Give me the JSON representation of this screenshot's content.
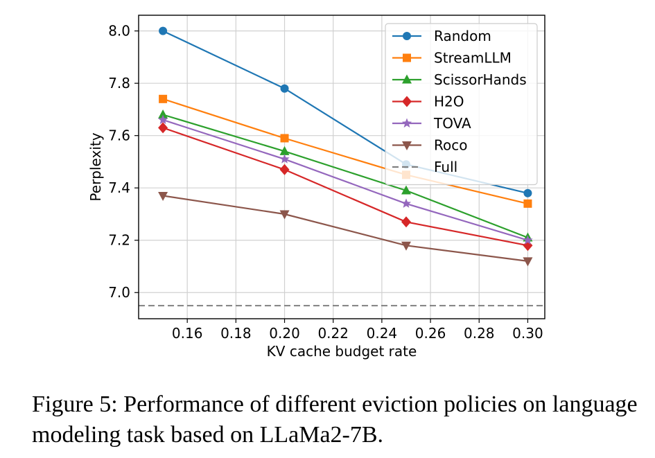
{
  "chart_data": {
    "type": "line",
    "xlabel": "KV cache budget rate",
    "ylabel": "Perplexity",
    "xlim": [
      0.14,
      0.307
    ],
    "ylim": [
      6.9,
      8.06
    ],
    "xticks": [
      0.16,
      0.18,
      0.2,
      0.22,
      0.24,
      0.26,
      0.28,
      0.3
    ],
    "xtick_labels": [
      "0.16",
      "0.18",
      "0.20",
      "0.22",
      "0.24",
      "0.26",
      "0.28",
      "0.30"
    ],
    "yticks": [
      7.0,
      7.2,
      7.4,
      7.6,
      7.8,
      8.0
    ],
    "ytick_labels": [
      "7.0",
      "7.2",
      "7.4",
      "7.6",
      "7.8",
      "8.0"
    ],
    "grid": true,
    "legend_position": "top-right",
    "x": [
      0.15,
      0.2,
      0.25,
      0.3
    ],
    "series": [
      {
        "name": "Random",
        "values": [
          8.0,
          7.78,
          7.49,
          7.38
        ],
        "color": "#1f77b4",
        "marker": "circle"
      },
      {
        "name": "StreamLLM",
        "values": [
          7.74,
          7.59,
          7.45,
          7.34
        ],
        "color": "#ff7f0e",
        "marker": "square"
      },
      {
        "name": "ScissorHands",
        "values": [
          7.68,
          7.54,
          7.39,
          7.21
        ],
        "color": "#2ca02c",
        "marker": "triangle-up"
      },
      {
        "name": "H2O",
        "values": [
          7.63,
          7.47,
          7.27,
          7.18
        ],
        "color": "#d62728",
        "marker": "diamond"
      },
      {
        "name": "TOVA",
        "values": [
          7.66,
          7.51,
          7.34,
          7.2
        ],
        "color": "#9467bd",
        "marker": "star"
      },
      {
        "name": "Roco",
        "values": [
          7.37,
          7.3,
          7.18,
          7.12
        ],
        "color": "#8c564b",
        "marker": "triangle-down"
      }
    ],
    "reference_lines": [
      {
        "name": "Full",
        "value": 6.95,
        "color": "#808080",
        "style": "dashed"
      }
    ]
  },
  "caption": "Figure 5: Performance of different eviction policies on language modeling task based on LLaMa2-7B."
}
